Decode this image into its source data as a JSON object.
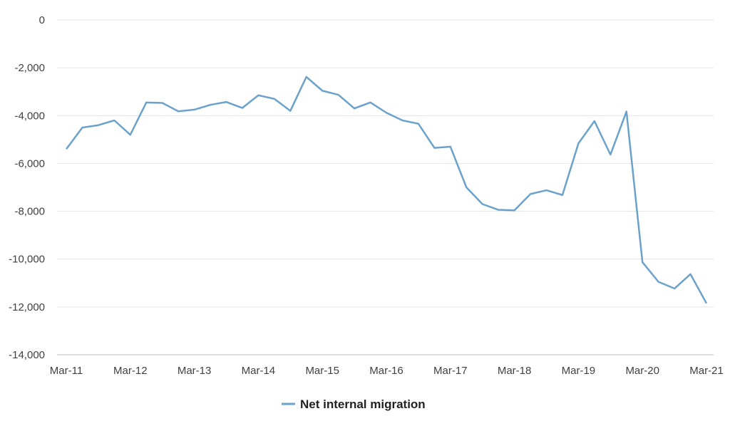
{
  "chart_data": {
    "type": "line",
    "x": [
      "Mar-11",
      "Jun-11",
      "Sep-11",
      "Dec-11",
      "Mar-12",
      "Jun-12",
      "Sep-12",
      "Dec-12",
      "Mar-13",
      "Jun-13",
      "Sep-13",
      "Dec-13",
      "Mar-14",
      "Jun-14",
      "Sep-14",
      "Dec-14",
      "Mar-15",
      "Jun-15",
      "Sep-15",
      "Dec-15",
      "Mar-16",
      "Jun-16",
      "Sep-16",
      "Dec-16",
      "Mar-17",
      "Jun-17",
      "Sep-17",
      "Dec-17",
      "Mar-18",
      "Jun-18",
      "Sep-18",
      "Dec-18",
      "Mar-19",
      "Jun-19",
      "Sep-19",
      "Dec-19",
      "Mar-20",
      "Jun-20",
      "Sep-20",
      "Dec-20",
      "Mar-21"
    ],
    "x_tick_labels": [
      "Mar-11",
      "Mar-12",
      "Mar-13",
      "Mar-14",
      "Mar-15",
      "Mar-16",
      "Mar-17",
      "Mar-18",
      "Mar-19",
      "Mar-20",
      "Mar-21"
    ],
    "series": [
      {
        "name": "Net internal migration",
        "color": "#6aa2cc",
        "values": [
          -5400,
          -4500,
          -4400,
          -4200,
          -4800,
          -3450,
          -3470,
          -3820,
          -3750,
          -3550,
          -3430,
          -3680,
          -3150,
          -3300,
          -3800,
          -2380,
          -2960,
          -3130,
          -3700,
          -3450,
          -3880,
          -4200,
          -4340,
          -5350,
          -5300,
          -7000,
          -7700,
          -7940,
          -7960,
          -7280,
          -7120,
          -7320,
          -5160,
          -4230,
          -5630,
          -3830,
          -10130,
          -10950,
          -11230,
          -10630,
          -11850
        ]
      }
    ],
    "y_ticks": [
      0,
      -2000,
      -4000,
      -6000,
      -8000,
      -10000,
      -12000,
      -14000
    ],
    "y_tick_labels": [
      "0",
      "-2,000",
      "-4,000",
      "-6,000",
      "-8,000",
      "-10,000",
      "-12,000",
      "-14,000"
    ],
    "ylim": [
      -14000,
      0
    ],
    "grid": true,
    "legend_position": "bottom-center",
    "title": "",
    "xlabel": "",
    "ylabel": ""
  }
}
